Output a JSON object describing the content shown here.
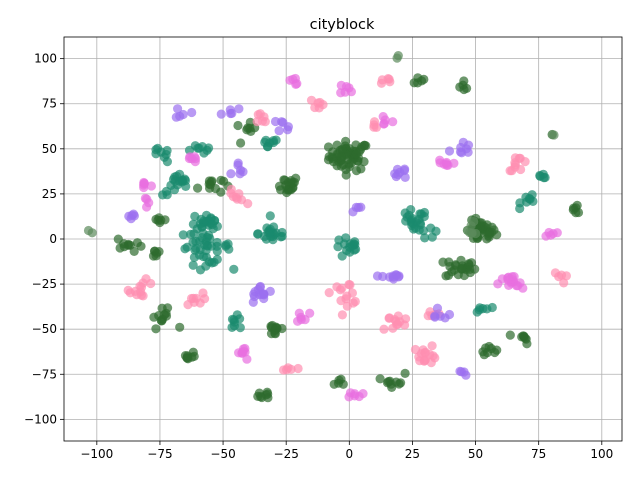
{
  "chart_data": {
    "type": "scatter",
    "title": "cityblock",
    "xlabel": "",
    "ylabel": "",
    "xlim": [
      -113,
      108
    ],
    "ylim": [
      -112,
      112
    ],
    "xticks": [
      -100,
      -75,
      -50,
      -25,
      0,
      25,
      50,
      75,
      100
    ],
    "yticks": [
      -100,
      -75,
      -50,
      -25,
      0,
      25,
      50,
      75,
      100
    ],
    "grid": true,
    "point_alpha": 0.7,
    "colors": {
      "dark-green": "#2e6b2e",
      "teal": "#1a8a6e",
      "pink": "#ff8fb0",
      "magenta": "#e86fe0",
      "lavender": "#9b6ff0",
      "gray-green": "#5b8a5b"
    },
    "clusters": [
      {
        "color": "dark-green",
        "x": 0,
        "y": 46,
        "spread": 4,
        "n": 60
      },
      {
        "color": "dark-green",
        "x": 52,
        "y": 4,
        "spread": 3,
        "n": 40
      },
      {
        "color": "dark-green",
        "x": 44,
        "y": -16,
        "spread": 3,
        "n": 25
      },
      {
        "color": "dark-green",
        "x": -25,
        "y": 30,
        "spread": 2.5,
        "n": 20
      },
      {
        "color": "dark-green",
        "x": -29,
        "y": -50,
        "spread": 2,
        "n": 12
      },
      {
        "color": "dark-green",
        "x": -33,
        "y": -86,
        "spread": 1.5,
        "n": 8
      },
      {
        "color": "dark-green",
        "x": -64,
        "y": -65,
        "spread": 1.5,
        "n": 8
      },
      {
        "color": "dark-green",
        "x": 69,
        "y": -55,
        "spread": 1.5,
        "n": 8
      },
      {
        "color": "dark-green",
        "x": 55,
        "y": -61,
        "spread": 1.5,
        "n": 8
      },
      {
        "color": "dark-green",
        "x": -74,
        "y": -44,
        "spread": 2.5,
        "n": 12
      },
      {
        "color": "dark-green",
        "x": -87,
        "y": -3,
        "spread": 2.5,
        "n": 10
      },
      {
        "color": "dark-green",
        "x": -77,
        "y": -8,
        "spread": 1.5,
        "n": 6
      },
      {
        "color": "dark-green",
        "x": -55,
        "y": 30,
        "spread": 2.5,
        "n": 12
      },
      {
        "color": "dark-green",
        "x": 90,
        "y": 16,
        "spread": 1.5,
        "n": 6
      },
      {
        "color": "dark-green",
        "x": 18,
        "y": -78,
        "spread": 2,
        "n": 10
      },
      {
        "color": "dark-green",
        "x": 27,
        "y": 88,
        "spread": 1.5,
        "n": 5
      },
      {
        "color": "dark-green",
        "x": 46,
        "y": 85,
        "spread": 1.5,
        "n": 5
      },
      {
        "color": "dark-green",
        "x": -3,
        "y": -80,
        "spread": 1.5,
        "n": 5
      },
      {
        "color": "dark-green",
        "x": -41,
        "y": 60,
        "spread": 2,
        "n": 8
      },
      {
        "color": "dark-green",
        "x": -75,
        "y": 11,
        "spread": 1.5,
        "n": 6
      },
      {
        "color": "teal",
        "x": -57,
        "y": -4,
        "spread": 5,
        "n": 45
      },
      {
        "color": "teal",
        "x": -68,
        "y": 30,
        "spread": 3,
        "n": 18
      },
      {
        "color": "teal",
        "x": -57,
        "y": 10,
        "spread": 3,
        "n": 18
      },
      {
        "color": "teal",
        "x": -30,
        "y": 3,
        "spread": 3,
        "n": 20
      },
      {
        "color": "teal",
        "x": 25,
        "y": 10,
        "spread": 3,
        "n": 20
      },
      {
        "color": "teal",
        "x": 0,
        "y": -5,
        "spread": 3,
        "n": 15
      },
      {
        "color": "teal",
        "x": -75,
        "y": 46,
        "spread": 2,
        "n": 8
      },
      {
        "color": "teal",
        "x": -58,
        "y": 51,
        "spread": 2,
        "n": 8
      },
      {
        "color": "teal",
        "x": -32,
        "y": 52,
        "spread": 2,
        "n": 8
      },
      {
        "color": "teal",
        "x": -45,
        "y": -47,
        "spread": 2,
        "n": 8
      },
      {
        "color": "teal",
        "x": 72,
        "y": 22,
        "spread": 2,
        "n": 8
      },
      {
        "color": "teal",
        "x": 53,
        "y": -39,
        "spread": 1.5,
        "n": 6
      },
      {
        "color": "teal",
        "x": 77,
        "y": 35,
        "spread": 1.5,
        "n": 5
      },
      {
        "color": "teal",
        "x": 32,
        "y": 4,
        "spread": 2,
        "n": 6
      },
      {
        "color": "pink",
        "x": 30,
        "y": -64,
        "spread": 2.5,
        "n": 15
      },
      {
        "color": "pink",
        "x": -82,
        "y": -28,
        "spread": 2.5,
        "n": 12
      },
      {
        "color": "pink",
        "x": 67,
        "y": 42,
        "spread": 2,
        "n": 10
      },
      {
        "color": "pink",
        "x": 18,
        "y": -46,
        "spread": 3,
        "n": 12
      },
      {
        "color": "pink",
        "x": -1,
        "y": -30,
        "spread": 3,
        "n": 14
      },
      {
        "color": "pink",
        "x": -45,
        "y": 23,
        "spread": 2,
        "n": 8
      },
      {
        "color": "pink",
        "x": -25,
        "y": -73,
        "spread": 1.5,
        "n": 5
      },
      {
        "color": "pink",
        "x": 14,
        "y": 88,
        "spread": 1.5,
        "n": 5
      },
      {
        "color": "pink",
        "x": -35,
        "y": 66,
        "spread": 2,
        "n": 6
      },
      {
        "color": "pink",
        "x": 33,
        "y": -40,
        "spread": 1.5,
        "n": 5
      },
      {
        "color": "pink",
        "x": 84,
        "y": -21,
        "spread": 1.5,
        "n": 5
      },
      {
        "color": "pink",
        "x": -62,
        "y": -34,
        "spread": 2,
        "n": 8
      },
      {
        "color": "pink",
        "x": 10,
        "y": 63,
        "spread": 1.5,
        "n": 4
      },
      {
        "color": "pink",
        "x": -13,
        "y": 75,
        "spread": 2,
        "n": 6
      },
      {
        "color": "magenta",
        "x": 64,
        "y": -25,
        "spread": 2.5,
        "n": 16
      },
      {
        "color": "magenta",
        "x": 3,
        "y": -87,
        "spread": 1.5,
        "n": 6
      },
      {
        "color": "magenta",
        "x": -42,
        "y": -63,
        "spread": 2,
        "n": 8
      },
      {
        "color": "magenta",
        "x": -81,
        "y": 30,
        "spread": 1.5,
        "n": 6
      },
      {
        "color": "magenta",
        "x": 38,
        "y": 42,
        "spread": 2,
        "n": 8
      },
      {
        "color": "magenta",
        "x": -22,
        "y": 87,
        "spread": 1.5,
        "n": 5
      },
      {
        "color": "magenta",
        "x": 0,
        "y": 83,
        "spread": 2,
        "n": 6
      },
      {
        "color": "magenta",
        "x": 14,
        "y": 66,
        "spread": 1.5,
        "n": 5
      },
      {
        "color": "magenta",
        "x": -62,
        "y": 44,
        "spread": 2,
        "n": 6
      },
      {
        "color": "magenta",
        "x": 80,
        "y": 4,
        "spread": 1.5,
        "n": 5
      },
      {
        "color": "magenta",
        "x": -18,
        "y": -43,
        "spread": 2,
        "n": 6
      },
      {
        "color": "magenta",
        "x": -80,
        "y": 22,
        "spread": 1.5,
        "n": 4
      },
      {
        "color": "lavender",
        "x": -35,
        "y": -31,
        "spread": 2.5,
        "n": 14
      },
      {
        "color": "lavender",
        "x": 17,
        "y": -21,
        "spread": 2,
        "n": 10
      },
      {
        "color": "lavender",
        "x": 44,
        "y": 50,
        "spread": 2,
        "n": 8
      },
      {
        "color": "lavender",
        "x": 20,
        "y": 37,
        "spread": 2,
        "n": 8
      },
      {
        "color": "lavender",
        "x": -66,
        "y": 70,
        "spread": 1.5,
        "n": 5
      },
      {
        "color": "lavender",
        "x": -47,
        "y": 71,
        "spread": 1.5,
        "n": 5
      },
      {
        "color": "lavender",
        "x": -24,
        "y": 63,
        "spread": 2,
        "n": 6
      },
      {
        "color": "lavender",
        "x": -44,
        "y": 40,
        "spread": 2,
        "n": 6
      },
      {
        "color": "lavender",
        "x": 36,
        "y": -41,
        "spread": 2,
        "n": 6
      },
      {
        "color": "lavender",
        "x": 44,
        "y": -75,
        "spread": 1.5,
        "n": 4
      },
      {
        "color": "lavender",
        "x": -87,
        "y": 13,
        "spread": 1.5,
        "n": 5
      },
      {
        "color": "lavender",
        "x": 3,
        "y": 16,
        "spread": 1.5,
        "n": 4
      },
      {
        "color": "gray-green",
        "x": 81,
        "y": 58,
        "spread": 1,
        "n": 3
      },
      {
        "color": "gray-green",
        "x": -103,
        "y": 4,
        "spread": 1,
        "n": 2
      },
      {
        "color": "gray-green",
        "x": 19,
        "y": 101,
        "spread": 1,
        "n": 2
      },
      {
        "color": "gray-green",
        "x": 48,
        "y": 5,
        "spread": 2,
        "n": 6
      }
    ]
  }
}
